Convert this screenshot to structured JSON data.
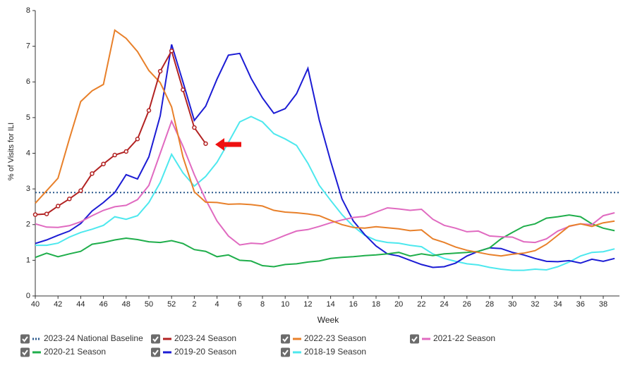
{
  "chart_data": {
    "type": "line",
    "y_label": "% of Visits for ILI",
    "x_label": "Week",
    "categories": [
      "40",
      null,
      "42",
      null,
      "44",
      null,
      "46",
      null,
      "48",
      null,
      "50",
      null,
      "52",
      null,
      "2",
      null,
      "4",
      null,
      "6",
      null,
      "8",
      null,
      "10",
      null,
      "12",
      null,
      "14",
      null,
      "16",
      null,
      "18",
      null,
      "20",
      null,
      "22",
      null,
      "24",
      null,
      "26",
      null,
      "28",
      null,
      "30",
      null,
      "32",
      null,
      "34",
      null,
      "36",
      null,
      "38",
      null
    ],
    "ylim": [
      0,
      8
    ],
    "yticks": [
      0,
      1,
      2,
      3,
      4,
      5,
      6,
      7,
      8
    ],
    "baseline": {
      "name": "2023-24 National Baseline",
      "color": "#2b5a8c",
      "value": 2.9
    },
    "series": [
      {
        "name": "2023-24 Season",
        "color": "#b22222",
        "markers": true,
        "values": [
          2.28,
          2.3,
          2.52,
          2.72,
          2.95,
          3.43,
          3.7,
          3.95,
          4.05,
          4.4,
          5.2,
          6.3,
          6.87,
          5.78,
          4.72,
          4.27,
          null,
          null,
          null,
          null,
          null,
          null,
          null,
          null,
          null,
          null,
          null,
          null,
          null,
          null,
          null,
          null,
          null,
          null,
          null,
          null,
          null,
          null,
          null,
          null,
          null,
          null,
          null,
          null,
          null,
          null,
          null,
          null,
          null,
          null,
          null,
          null
        ]
      },
      {
        "name": "2022-23 Season",
        "color": "#e8802a",
        "values": [
          2.6,
          2.95,
          3.3,
          4.4,
          5.45,
          5.75,
          5.93,
          7.45,
          7.22,
          6.85,
          6.32,
          5.98,
          5.3,
          3.9,
          2.92,
          2.63,
          2.62,
          2.57,
          2.58,
          2.56,
          2.52,
          2.4,
          2.35,
          2.33,
          2.3,
          2.25,
          2.12,
          2.0,
          1.92,
          1.9,
          1.94,
          1.91,
          1.88,
          1.83,
          1.85,
          1.6,
          1.5,
          1.37,
          1.28,
          1.22,
          1.16,
          1.12,
          1.17,
          1.2,
          1.27,
          1.45,
          1.7,
          1.96,
          2.02,
          1.95,
          2.05,
          2.1
        ]
      },
      {
        "name": "2021-22 Season",
        "color": "#e06ac0",
        "values": [
          2.02,
          1.93,
          1.92,
          1.97,
          2.08,
          2.25,
          2.4,
          2.5,
          2.54,
          2.7,
          3.1,
          4.0,
          4.9,
          4.2,
          3.4,
          2.7,
          2.1,
          1.68,
          1.43,
          1.48,
          1.46,
          1.57,
          1.7,
          1.82,
          1.86,
          1.95,
          2.05,
          2.13,
          2.2,
          2.23,
          2.35,
          2.47,
          2.44,
          2.4,
          2.43,
          2.15,
          1.98,
          1.9,
          1.8,
          1.82,
          1.68,
          1.66,
          1.65,
          1.52,
          1.5,
          1.6,
          1.82,
          1.95,
          2.02,
          2.0,
          2.25,
          2.33
        ]
      },
      {
        "name": "2020-21 Season",
        "color": "#1fae4b",
        "values": [
          1.08,
          1.2,
          1.1,
          1.18,
          1.25,
          1.45,
          1.5,
          1.57,
          1.62,
          1.58,
          1.52,
          1.5,
          1.55,
          1.47,
          1.3,
          1.25,
          1.1,
          1.15,
          1.0,
          0.98,
          0.85,
          0.82,
          0.88,
          0.9,
          0.95,
          0.98,
          1.05,
          1.08,
          1.1,
          1.13,
          1.15,
          1.18,
          1.22,
          1.12,
          1.18,
          1.13,
          1.18,
          1.2,
          1.22,
          1.25,
          1.35,
          1.6,
          1.78,
          1.95,
          2.02,
          2.18,
          2.22,
          2.27,
          2.22,
          2.02,
          1.9,
          1.83
        ]
      },
      {
        "name": "2019-20 Season",
        "color": "#1c1cd4",
        "values": [
          1.47,
          1.57,
          1.7,
          1.82,
          2.03,
          2.38,
          2.62,
          2.9,
          3.4,
          3.28,
          3.9,
          5.05,
          7.05,
          6.0,
          4.92,
          5.32,
          6.08,
          6.75,
          6.8,
          6.1,
          5.55,
          5.12,
          5.25,
          5.67,
          6.38,
          4.93,
          3.78,
          2.72,
          2.1,
          1.72,
          1.4,
          1.18,
          1.12,
          1.0,
          0.88,
          0.8,
          0.82,
          0.92,
          1.12,
          1.25,
          1.35,
          1.33,
          1.22,
          1.15,
          1.05,
          0.97,
          0.96,
          0.99,
          0.92,
          1.03,
          0.97,
          1.05
        ]
      },
      {
        "name": "2018-19 Season",
        "color": "#4de8ee",
        "values": [
          1.42,
          1.42,
          1.48,
          1.65,
          1.78,
          1.87,
          1.98,
          2.22,
          2.15,
          2.25,
          2.62,
          3.18,
          3.97,
          3.45,
          3.08,
          3.35,
          3.75,
          4.3,
          4.88,
          5.03,
          4.88,
          4.55,
          4.4,
          4.22,
          3.72,
          3.1,
          2.68,
          2.28,
          1.95,
          1.7,
          1.56,
          1.5,
          1.48,
          1.42,
          1.38,
          1.18,
          1.05,
          0.97,
          0.9,
          0.87,
          0.8,
          0.75,
          0.72,
          0.72,
          0.75,
          0.73,
          0.82,
          0.95,
          1.12,
          1.22,
          1.24,
          1.32
        ]
      }
    ]
  }
}
